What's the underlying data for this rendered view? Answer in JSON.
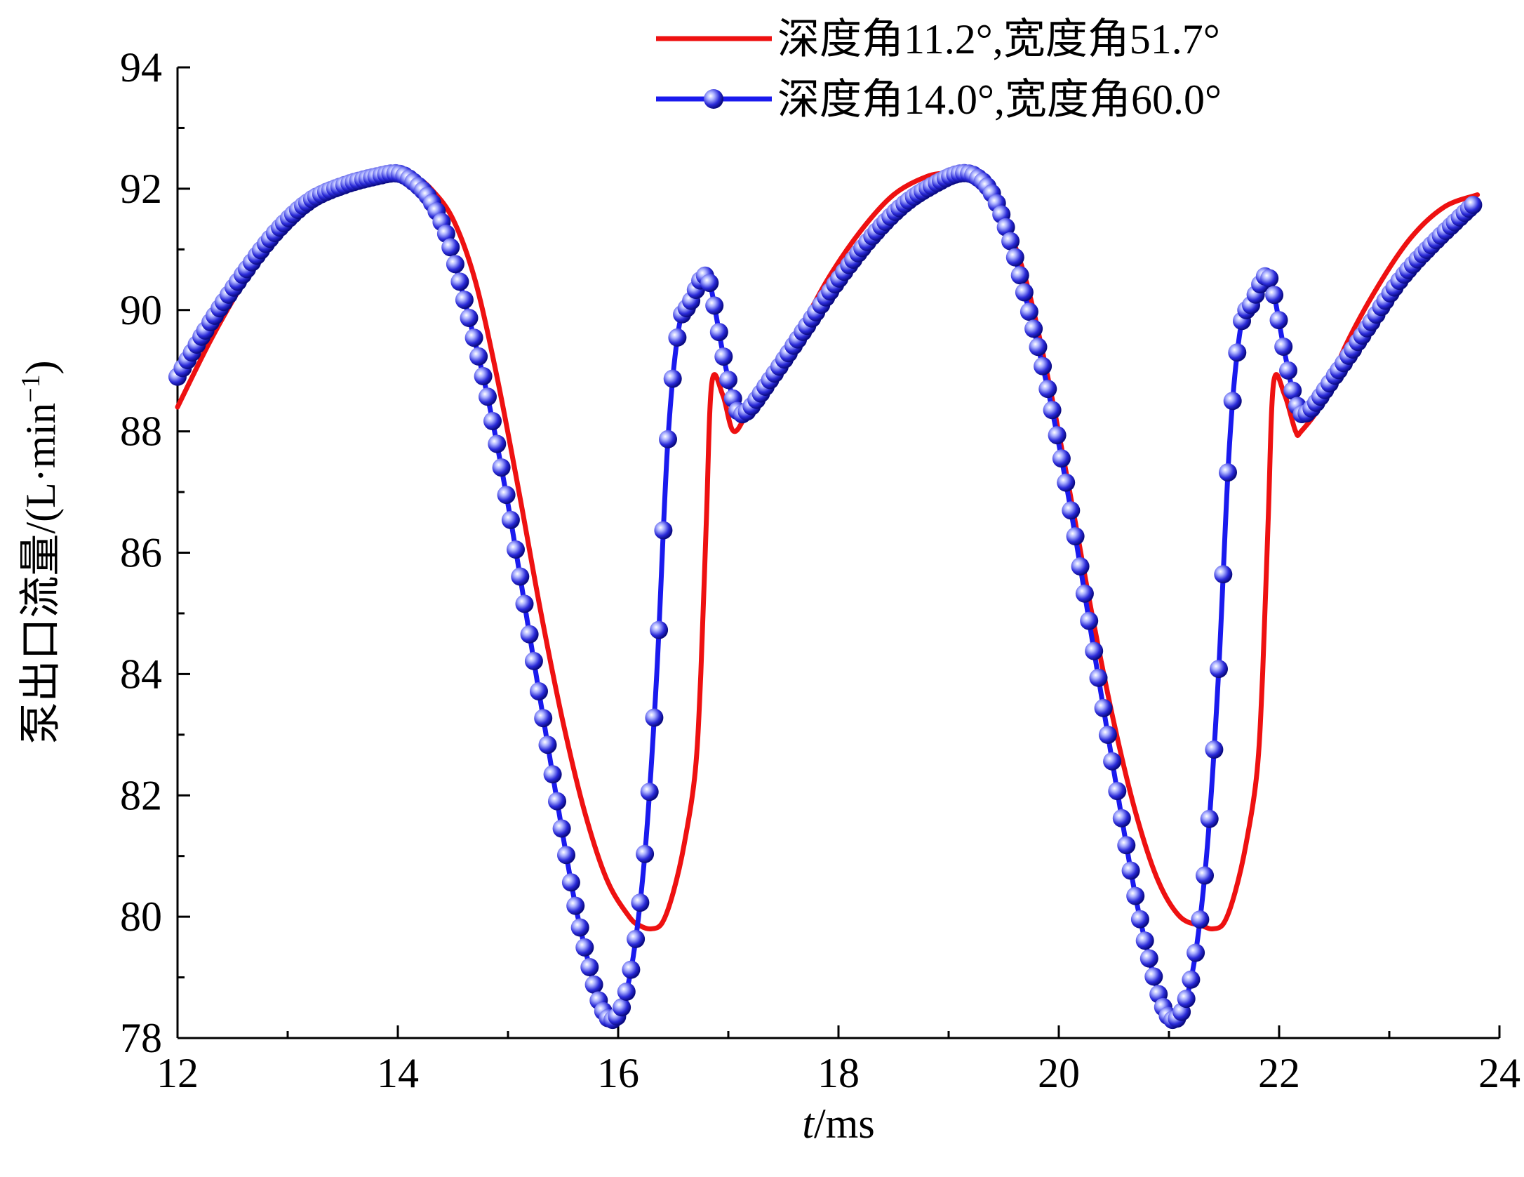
{
  "chart_data": {
    "type": "line",
    "title": "",
    "xlabel": "t/ms",
    "xlabel_italic": "t",
    "xlabel_rest": "/ms",
    "ylabel": "泵出口流量/(L·min⁻¹)",
    "ylabel_main": "泵出口流量/(L·min",
    "ylabel_sup": "−1",
    "ylabel_close": ")",
    "xlim": [
      12,
      24
    ],
    "ylim": [
      78,
      94
    ],
    "xticks": [
      "12",
      "14",
      "16",
      "18",
      "20",
      "22",
      "24"
    ],
    "yticks": [
      "78",
      "80",
      "82",
      "84",
      "86",
      "88",
      "90",
      "92",
      "94"
    ],
    "legend_position": "top-right",
    "series": [
      {
        "name": "深度角11.2°,宽度角51.7°",
        "color": "#ee1111",
        "marker": "none",
        "x": [
          12.0,
          12.3,
          12.6,
          12.9,
          13.2,
          13.5,
          13.8,
          14.0,
          14.15,
          14.3,
          14.5,
          14.7,
          14.9,
          15.1,
          15.3,
          15.5,
          15.7,
          15.9,
          16.1,
          16.2,
          16.3,
          16.4,
          16.5,
          16.6,
          16.7,
          16.75,
          16.8,
          16.85,
          16.95,
          17.05,
          17.2,
          17.4,
          17.6,
          17.9,
          18.2,
          18.5,
          18.8,
          19.0,
          19.15,
          19.3,
          19.5,
          19.7,
          19.9,
          20.1,
          20.3,
          20.5,
          20.7,
          20.9,
          21.1,
          21.3,
          21.4,
          21.5,
          21.6,
          21.7,
          21.8,
          21.85,
          21.9,
          21.95,
          22.05,
          22.15,
          22.2,
          22.4,
          22.6,
          22.9,
          23.2,
          23.5,
          23.8
        ],
        "y": [
          88.4,
          89.5,
          90.45,
          91.2,
          91.75,
          92.05,
          92.2,
          92.25,
          92.2,
          92.0,
          91.5,
          90.5,
          88.9,
          87.0,
          85.0,
          83.2,
          81.7,
          80.6,
          80.0,
          79.85,
          79.8,
          79.9,
          80.4,
          81.2,
          82.4,
          84.0,
          86.5,
          88.8,
          88.6,
          88.0,
          88.4,
          88.9,
          89.5,
          90.5,
          91.3,
          91.9,
          92.2,
          92.25,
          92.2,
          92.0,
          91.5,
          90.5,
          88.9,
          87.0,
          85.0,
          83.2,
          81.7,
          80.6,
          80.0,
          79.85,
          79.8,
          79.9,
          80.4,
          81.2,
          82.4,
          84.0,
          86.5,
          88.8,
          88.6,
          88.0,
          88.0,
          88.5,
          89.4,
          90.4,
          91.2,
          91.7,
          91.9
        ]
      },
      {
        "name": "深度角14.0°,宽度角60.0°",
        "color": "#1a1aee",
        "marker": "sphere",
        "x": [
          12.0,
          12.3,
          12.6,
          12.9,
          13.2,
          13.5,
          13.8,
          14.0,
          14.15,
          14.3,
          14.45,
          14.6,
          14.8,
          15.0,
          15.2,
          15.4,
          15.6,
          15.75,
          15.85,
          15.95,
          16.05,
          16.15,
          16.25,
          16.35,
          16.45,
          16.55,
          16.65,
          16.75,
          16.8,
          16.85,
          16.95,
          17.05,
          17.15,
          17.4,
          17.7,
          18.0,
          18.3,
          18.6,
          18.9,
          19.1,
          19.25,
          19.4,
          19.55,
          19.7,
          19.9,
          20.1,
          20.3,
          20.5,
          20.7,
          20.85,
          20.95,
          21.05,
          21.15,
          21.25,
          21.35,
          21.45,
          21.55,
          21.65,
          21.75,
          21.85,
          21.9,
          21.95,
          22.05,
          22.15,
          22.25,
          22.5,
          22.8,
          23.1,
          23.4,
          23.8
        ],
        "y": [
          88.9,
          89.8,
          90.6,
          91.3,
          91.8,
          92.05,
          92.2,
          92.25,
          92.1,
          91.8,
          91.2,
          90.2,
          88.7,
          86.8,
          84.6,
          82.4,
          80.3,
          79.1,
          78.5,
          78.3,
          78.6,
          79.5,
          81.2,
          84.0,
          87.8,
          89.7,
          90.1,
          90.5,
          90.55,
          90.3,
          89.3,
          88.5,
          88.3,
          88.9,
          89.7,
          90.5,
          91.2,
          91.75,
          92.1,
          92.25,
          92.2,
          91.9,
          91.2,
          90.2,
          88.7,
          86.8,
          84.6,
          82.4,
          80.3,
          79.1,
          78.5,
          78.3,
          78.6,
          79.5,
          81.2,
          84.0,
          87.8,
          89.7,
          90.1,
          90.5,
          90.55,
          90.3,
          89.3,
          88.5,
          88.3,
          88.9,
          89.7,
          90.5,
          91.1,
          91.8
        ]
      }
    ]
  }
}
